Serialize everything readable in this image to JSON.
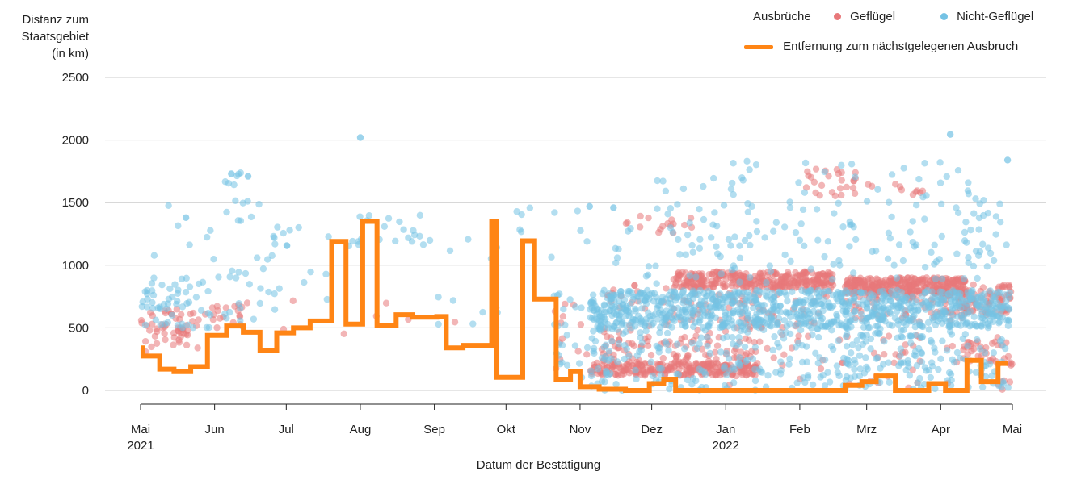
{
  "chart_data": {
    "type": "scatter",
    "ylabel": [
      "Distanz zum",
      "Staatsgebiet",
      "(in km)"
    ],
    "xlabel": "Datum der Bestätigung",
    "ylim": [
      0,
      2500
    ],
    "yticks": [
      0,
      500,
      1000,
      1500,
      2000,
      2500
    ],
    "xlim": [
      "2021-05-01",
      "2022-05-01"
    ],
    "xticks": [
      {
        "date": "2021-05-01",
        "label": "Mai",
        "year": "2021"
      },
      {
        "date": "2021-06-01",
        "label": "Jun"
      },
      {
        "date": "2021-07-01",
        "label": "Jul"
      },
      {
        "date": "2021-08-01",
        "label": "Aug"
      },
      {
        "date": "2021-09-01",
        "label": "Sep"
      },
      {
        "date": "2021-10-01",
        "label": "Okt"
      },
      {
        "date": "2021-11-01",
        "label": "Nov"
      },
      {
        "date": "2021-12-01",
        "label": "Dez"
      },
      {
        "date": "2022-01-01",
        "label": "Jan",
        "year": "2022"
      },
      {
        "date": "2022-02-01",
        "label": "Feb"
      },
      {
        "date": "2022-03-01",
        "label": "Mrz"
      },
      {
        "date": "2022-04-01",
        "label": "Apr"
      },
      {
        "date": "2022-05-01",
        "label": "Mai"
      }
    ],
    "grid": true,
    "legend": {
      "title": "Ausbrüche",
      "position": "top-right",
      "entries": [
        {
          "name": "Geflügel",
          "color": "#E8787A"
        },
        {
          "name": "Nicht-Geflügel",
          "color": "#74C2E4"
        },
        {
          "name": "Entfernung zum nächstgelegenen Ausbruch",
          "color": "#FF8515"
        }
      ]
    },
    "line_series": {
      "name": "Entfernung zum nächstgelegenen Ausbruch",
      "color": "#FF8515",
      "steps": [
        [
          "2021-05-01",
          340
        ],
        [
          "2021-05-02",
          275
        ],
        [
          "2021-05-09",
          170
        ],
        [
          "2021-05-15",
          150
        ],
        [
          "2021-05-22",
          190
        ],
        [
          "2021-05-29",
          440
        ],
        [
          "2021-06-06",
          515
        ],
        [
          "2021-06-13",
          465
        ],
        [
          "2021-06-20",
          320
        ],
        [
          "2021-06-27",
          460
        ],
        [
          "2021-07-04",
          500
        ],
        [
          "2021-07-11",
          555
        ],
        [
          "2021-07-20",
          1190
        ],
        [
          "2021-07-26",
          530
        ],
        [
          "2021-08-02",
          1350
        ],
        [
          "2021-08-08",
          520
        ],
        [
          "2021-08-16",
          605
        ],
        [
          "2021-08-23",
          585
        ],
        [
          "2021-09-02",
          590
        ],
        [
          "2021-09-06",
          340
        ],
        [
          "2021-09-13",
          360
        ],
        [
          "2021-09-25",
          1350
        ],
        [
          "2021-09-27",
          105
        ],
        [
          "2021-10-08",
          1195
        ],
        [
          "2021-10-13",
          730
        ],
        [
          "2021-10-22",
          90
        ],
        [
          "2021-10-28",
          150
        ],
        [
          "2021-11-01",
          30
        ],
        [
          "2021-11-09",
          10
        ],
        [
          "2021-11-20",
          0
        ],
        [
          "2021-11-30",
          55
        ],
        [
          "2021-12-06",
          90
        ],
        [
          "2021-12-11",
          0
        ],
        [
          "2022-02-20",
          40
        ],
        [
          "2022-02-27",
          70
        ],
        [
          "2022-03-05",
          115
        ],
        [
          "2022-03-13",
          0
        ],
        [
          "2022-03-27",
          55
        ],
        [
          "2022-04-03",
          0
        ],
        [
          "2022-04-12",
          240
        ],
        [
          "2022-04-18",
          70
        ],
        [
          "2022-04-25",
          215
        ],
        [
          "2022-04-29",
          215
        ]
      ]
    },
    "scatter_series": [
      {
        "name": "Geflügel",
        "color": "#E8787A",
        "clusters": [
          {
            "from": "2021-05-01",
            "to": "2021-05-25",
            "y": [
              400,
              650
            ],
            "n": 45
          },
          {
            "from": "2021-05-01",
            "to": "2021-05-25",
            "y": [
              280,
              400
            ],
            "n": 8
          },
          {
            "from": "2021-05-25",
            "to": "2021-06-20",
            "y": [
              500,
              700
            ],
            "n": 20
          },
          {
            "from": "2021-06-20",
            "to": "2021-09-30",
            "y": [
              450,
              750
            ],
            "n": 8
          },
          {
            "from": "2021-10-20",
            "to": "2021-11-05",
            "y": [
              100,
              700
            ],
            "n": 12
          },
          {
            "from": "2021-11-05",
            "to": "2022-01-15",
            "y": [
              120,
              220
            ],
            "n": 240
          },
          {
            "from": "2021-11-10",
            "to": "2022-01-15",
            "y": [
              220,
              450
            ],
            "n": 90
          },
          {
            "from": "2021-11-10",
            "to": "2022-01-15",
            "y": [
              450,
              850
            ],
            "n": 60
          },
          {
            "from": "2021-11-20",
            "to": "2021-12-20",
            "y": [
              1250,
              1400
            ],
            "n": 16
          },
          {
            "from": "2021-12-10",
            "to": "2022-02-15",
            "y": [
              820,
              950
            ],
            "n": 300
          },
          {
            "from": "2022-01-01",
            "to": "2022-02-15",
            "y": [
              500,
              820
            ],
            "n": 40
          },
          {
            "from": "2022-02-01",
            "to": "2022-02-25",
            "y": [
              1550,
              1780
            ],
            "n": 26
          },
          {
            "from": "2022-02-20",
            "to": "2022-04-12",
            "y": [
              770,
              900
            ],
            "n": 300
          },
          {
            "from": "2022-02-20",
            "to": "2022-04-12",
            "y": [
              550,
              770
            ],
            "n": 60
          },
          {
            "from": "2022-03-01",
            "to": "2022-03-25",
            "y": [
              1550,
              1660
            ],
            "n": 10
          },
          {
            "from": "2022-04-01",
            "to": "2022-05-01",
            "y": [
              600,
              850
            ],
            "n": 90
          },
          {
            "from": "2022-04-10",
            "to": "2022-05-01",
            "y": [
              200,
              400
            ],
            "n": 30
          },
          {
            "from": "2022-01-01",
            "to": "2022-04-30",
            "y": [
              0,
              450
            ],
            "n": 60
          }
        ]
      },
      {
        "name": "Nicht-Geflügel",
        "color": "#74C2E4",
        "clusters": [
          {
            "from": "2021-05-01",
            "to": "2021-05-31",
            "y": [
              500,
              900
            ],
            "n": 55
          },
          {
            "from": "2021-05-01",
            "to": "2021-05-31",
            "y": [
              1000,
              1600
            ],
            "n": 6
          },
          {
            "from": "2021-05-31",
            "to": "2021-06-20",
            "y": [
              1350,
              1750
            ],
            "n": 14
          },
          {
            "from": "2021-05-31",
            "to": "2021-06-25",
            "y": [
              500,
              1100
            ],
            "n": 22
          },
          {
            "from": "2021-06-25",
            "to": "2021-07-20",
            "y": [
              550,
              1350
            ],
            "n": 18
          },
          {
            "from": "2021-07-25",
            "to": "2021-08-31",
            "y": [
              1150,
              1400
            ],
            "n": 22
          },
          {
            "from": "2021-08-31",
            "to": "2021-09-30",
            "y": [
              400,
              1400
            ],
            "n": 10
          },
          {
            "from": "2021-10-01",
            "to": "2021-11-05",
            "y": [
              1050,
              1480
            ],
            "n": 10
          },
          {
            "from": "2021-10-20",
            "to": "2021-11-10",
            "y": [
              100,
              800
            ],
            "n": 24
          },
          {
            "from": "2021-11-05",
            "to": "2022-04-30",
            "y": [
              500,
              800
            ],
            "n": 900
          },
          {
            "from": "2021-11-05",
            "to": "2022-04-30",
            "y": [
              0,
              500
            ],
            "n": 300
          },
          {
            "from": "2021-11-15",
            "to": "2022-04-30",
            "y": [
              850,
              1500
            ],
            "n": 150
          },
          {
            "from": "2022-01-01",
            "to": "2022-04-20",
            "y": [
              1500,
              1850
            ],
            "n": 35
          },
          {
            "from": "2022-02-20",
            "to": "2022-03-30",
            "y": [
              150,
              450
            ],
            "n": 40
          },
          {
            "from": "2021-12-01",
            "to": "2021-12-31",
            "y": [
              1550,
              1700
            ],
            "n": 6
          }
        ],
        "points": [
          [
            "2021-08-01",
            2020
          ],
          [
            "2022-04-05",
            2045
          ],
          [
            "2022-04-29",
            1840
          ],
          [
            "2021-05-20",
            1380
          ],
          [
            "2021-06-08",
            1730
          ],
          [
            "2021-06-15",
            1710
          ],
          [
            "2021-11-05",
            1470
          ],
          [
            "2021-11-15",
            1460
          ]
        ]
      }
    ]
  }
}
